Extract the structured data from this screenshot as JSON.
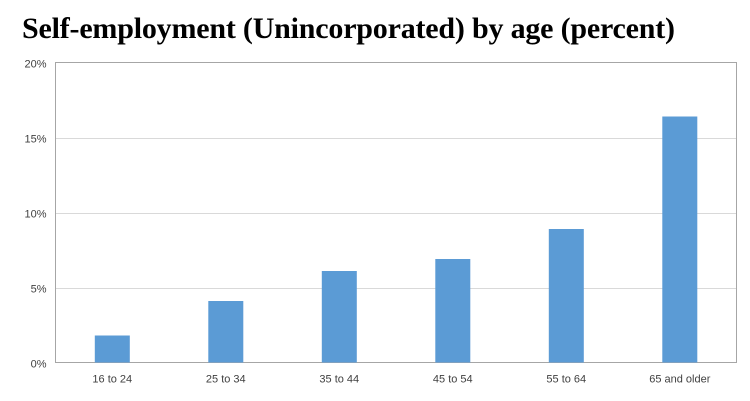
{
  "chart_data": {
    "type": "bar",
    "title": "Self-employment (Unincorporated) by age (percent)",
    "categories": [
      "16 to 24",
      "25 to 34",
      "35 to 44",
      "45 to 54",
      "55 to 64",
      "65 and older"
    ],
    "values": [
      1.8,
      4.1,
      6.1,
      6.9,
      8.9,
      16.4
    ],
    "ylim": [
      0,
      20
    ],
    "yticks": [
      0,
      5,
      10,
      15,
      20
    ],
    "ytick_labels": [
      "0%",
      "5%",
      "10%",
      "15%",
      "20%"
    ],
    "xlabel": "",
    "ylabel": "",
    "grid": true,
    "legend": "none",
    "bar_color": "#5b9bd5",
    "grid_color": "#d9d9d9",
    "frame_color": "#a6a6a6"
  }
}
